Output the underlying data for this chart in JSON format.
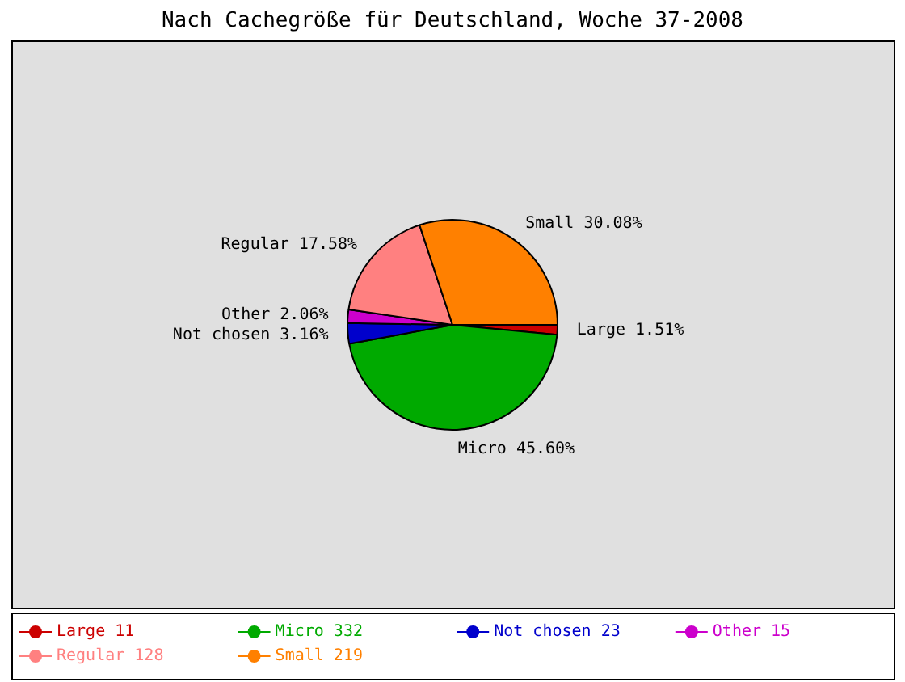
{
  "chart_data": {
    "type": "pie",
    "title": "Nach Cachegröße für Deutschland, Woche 37-2008",
    "categories": [
      "Large",
      "Micro",
      "Not chosen",
      "Other",
      "Regular",
      "Small"
    ],
    "values": [
      11,
      332,
      23,
      15,
      128,
      219
    ],
    "colors": [
      "#cc0000",
      "#00aa00",
      "#0000cc",
      "#cc00cc",
      "#ff8080",
      "#ff8000"
    ],
    "data_labels": true,
    "annotations": [
      {
        "text": "Large 1.51%",
        "x": "Large"
      },
      {
        "text": "Micro 45.60%",
        "x": "Micro"
      },
      {
        "text": "Not chosen 3.16%",
        "x": "Not chosen"
      },
      {
        "text": "Other 2.06%",
        "x": "Other"
      },
      {
        "text": "Regular 17.58%",
        "x": "Regular"
      },
      {
        "text": "Small 30.08%",
        "x": "Small"
      }
    ],
    "legend": "bottom"
  }
}
